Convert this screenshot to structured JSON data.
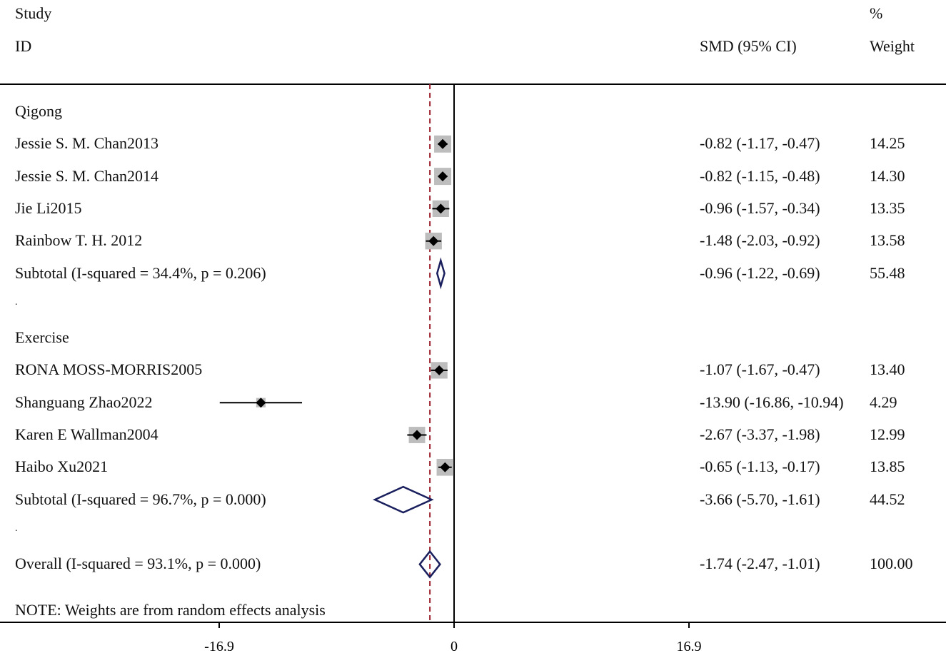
{
  "header": {
    "col1_line1": "Study",
    "col1_line2": "ID",
    "col2": "SMD (95% CI)",
    "col3_line1": "%",
    "col3_line2": "Weight"
  },
  "note": "NOTE: Weights are from random effects analysis",
  "colors": {
    "box": "#bdbdbd",
    "diamond": "#1a1f5e",
    "overall_line": "#9a1f2a",
    "ink": "#000000"
  },
  "chart_data": {
    "type": "forest",
    "effect_measure": "SMD",
    "xlim": [
      -19.6,
      19.6
    ],
    "xticks": [
      -16.9,
      0,
      16.9
    ],
    "xtick_labels": [
      "-16.9",
      "0",
      "16.9"
    ],
    "reference_line": 0,
    "overall_line": -1.74,
    "rows": [
      {
        "kind": "group",
        "label": "Qigong"
      },
      {
        "kind": "study",
        "label": "Jessie S. M. Chan2013",
        "est": -0.82,
        "lo": -1.17,
        "hi": -0.47,
        "ci_text": "-0.82 (-1.17, -0.47)",
        "weight": "14.25"
      },
      {
        "kind": "study",
        "label": "Jessie S. M. Chan2014",
        "est": -0.82,
        "lo": -1.15,
        "hi": -0.48,
        "ci_text": "-0.82 (-1.15, -0.48)",
        "weight": "14.30"
      },
      {
        "kind": "study",
        "label": "Jie Li2015",
        "est": -0.96,
        "lo": -1.57,
        "hi": -0.34,
        "ci_text": "-0.96 (-1.57, -0.34)",
        "weight": "13.35"
      },
      {
        "kind": "study",
        "label": "Rainbow T. H. 2012",
        "est": -1.48,
        "lo": -2.03,
        "hi": -0.92,
        "ci_text": "-1.48 (-2.03, -0.92)",
        "weight": "13.58"
      },
      {
        "kind": "subtotal",
        "label": "Subtotal  (I-squared = 34.4%, p = 0.206)",
        "est": -0.96,
        "lo": -1.22,
        "hi": -0.69,
        "ci_text": "-0.96 (-1.22, -0.69)",
        "weight": "55.48"
      },
      {
        "kind": "spacer",
        "label": "."
      },
      {
        "kind": "group",
        "label": "Exercise"
      },
      {
        "kind": "study",
        "label": "RONA MOSS-MORRIS2005",
        "est": -1.07,
        "lo": -1.67,
        "hi": -0.47,
        "ci_text": "-1.07 (-1.67, -0.47)",
        "weight": "13.40"
      },
      {
        "kind": "study",
        "label": "Shanguang Zhao2022",
        "est": -13.9,
        "lo": -16.86,
        "hi": -10.94,
        "ci_text": "-13.90 (-16.86, -10.94)",
        "weight": "4.29"
      },
      {
        "kind": "study",
        "label": "Karen E Wallman2004",
        "est": -2.67,
        "lo": -3.37,
        "hi": -1.98,
        "ci_text": "-2.67 (-3.37, -1.98)",
        "weight": "12.99"
      },
      {
        "kind": "study",
        "label": "Haibo Xu2021",
        "est": -0.65,
        "lo": -1.13,
        "hi": -0.17,
        "ci_text": "-0.65 (-1.13, -0.17)",
        "weight": "13.85"
      },
      {
        "kind": "subtotal",
        "label": "Subtotal  (I-squared = 96.7%, p = 0.000)",
        "est": -3.66,
        "lo": -5.7,
        "hi": -1.61,
        "ci_text": "-3.66 (-5.70, -1.61)",
        "weight": "44.52"
      },
      {
        "kind": "spacer",
        "label": "."
      },
      {
        "kind": "overall",
        "label": "Overall  (I-squared = 93.1%, p = 0.000)",
        "est": -1.74,
        "lo": -2.47,
        "hi": -1.01,
        "ci_text": "-1.74 (-2.47, -1.01)",
        "weight": "100.00"
      }
    ]
  }
}
